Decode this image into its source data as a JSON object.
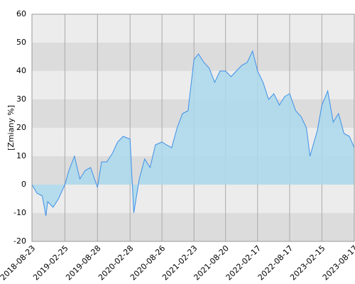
{
  "chart_data": {
    "type": "area",
    "y_label": "[Zmiany %]",
    "x": [
      "2018-08-23",
      "2018-09-20",
      "2018-10-20",
      "2018-11-10",
      "2018-11-20",
      "2018-12-20",
      "2019-01-20",
      "2019-02-25",
      "2019-03-20",
      "2019-04-20",
      "2019-05-20",
      "2019-06-20",
      "2019-07-20",
      "2019-08-28",
      "2019-09-20",
      "2019-10-20",
      "2019-11-20",
      "2019-12-20",
      "2020-01-20",
      "2020-02-28",
      "2020-03-20",
      "2020-04-20",
      "2020-05-20",
      "2020-06-20",
      "2020-07-20",
      "2020-08-26",
      "2020-09-20",
      "2020-10-20",
      "2020-11-20",
      "2020-12-20",
      "2021-01-20",
      "2021-02-23",
      "2021-03-20",
      "2021-04-20",
      "2021-05-20",
      "2021-06-20",
      "2021-07-20",
      "2021-08-20",
      "2021-09-20",
      "2021-10-20",
      "2021-11-20",
      "2021-12-20",
      "2022-01-20",
      "2022-02-17",
      "2022-03-20",
      "2022-04-20",
      "2022-05-20",
      "2022-06-20",
      "2022-07-20",
      "2022-08-17",
      "2022-09-20",
      "2022-10-20",
      "2022-11-20",
      "2022-12-10",
      "2023-01-20",
      "2023-02-15",
      "2023-03-20",
      "2023-04-20",
      "2023-05-20",
      "2023-06-20",
      "2023-07-20",
      "2023-08-17"
    ],
    "series": [
      {
        "name": "Zmiany %",
        "color": "#3d8fe8",
        "fill": "#acd9ec",
        "values": [
          0,
          -3,
          -4,
          -11,
          -6,
          -8,
          -5,
          0,
          5,
          10,
          2,
          5,
          6,
          -1,
          8,
          8,
          11,
          15,
          17,
          16,
          -10,
          2,
          9,
          6,
          14,
          15,
          14,
          13,
          20,
          25,
          26,
          44,
          46,
          43,
          41,
          36,
          40,
          40,
          38,
          40,
          42,
          43,
          47,
          40,
          36,
          30,
          32,
          28,
          31,
          32,
          26,
          24,
          20,
          10,
          19,
          28,
          33,
          22,
          25,
          18,
          17,
          13
        ]
      }
    ],
    "xlim": [
      "2018-08-23",
      "2023-08-17"
    ],
    "xticks": [
      "2018-08-23",
      "2019-02-25",
      "2019-08-28",
      "2020-02-28",
      "2020-08-26",
      "2021-02-23",
      "2021-08-20",
      "2022-02-17",
      "2022-08-17",
      "2023-02-15",
      "2023-08-17"
    ],
    "ylim": [
      -20,
      60
    ],
    "yticks": [
      -20,
      -10,
      0,
      10,
      20,
      30,
      40,
      50,
      60
    ],
    "grid": true
  }
}
